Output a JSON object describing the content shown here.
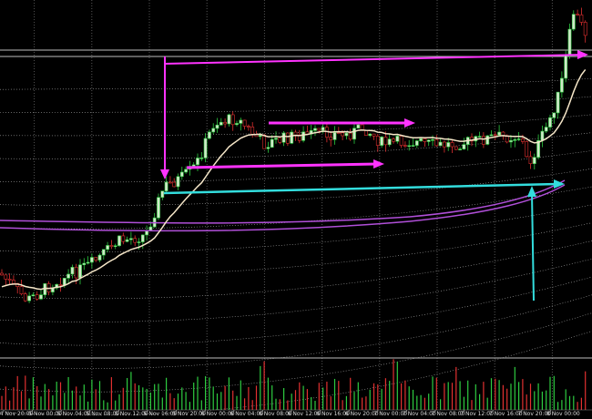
{
  "x_axis": {
    "labels": [
      "4 Nov 20:00",
      "5 Nov 00:00",
      "5 Nov 04:00",
      "5 Nov 08:00",
      "5 Nov 12:00",
      "5 Nov 16:00",
      "5 Nov 20:00",
      "6 Nov 00:00",
      "6 Nov 04:00",
      "6 Nov 08:00",
      "6 Nov 12:00",
      "6 Nov 16:00",
      "6 Nov 20:00",
      "7 Nov 00:00",
      "7 Nov 04:00",
      "7 Nov 08:00",
      "7 Nov 12:00",
      "7 Nov 16:00",
      "7 Nov 20:00",
      "8 Nov 00:00"
    ]
  }
}
